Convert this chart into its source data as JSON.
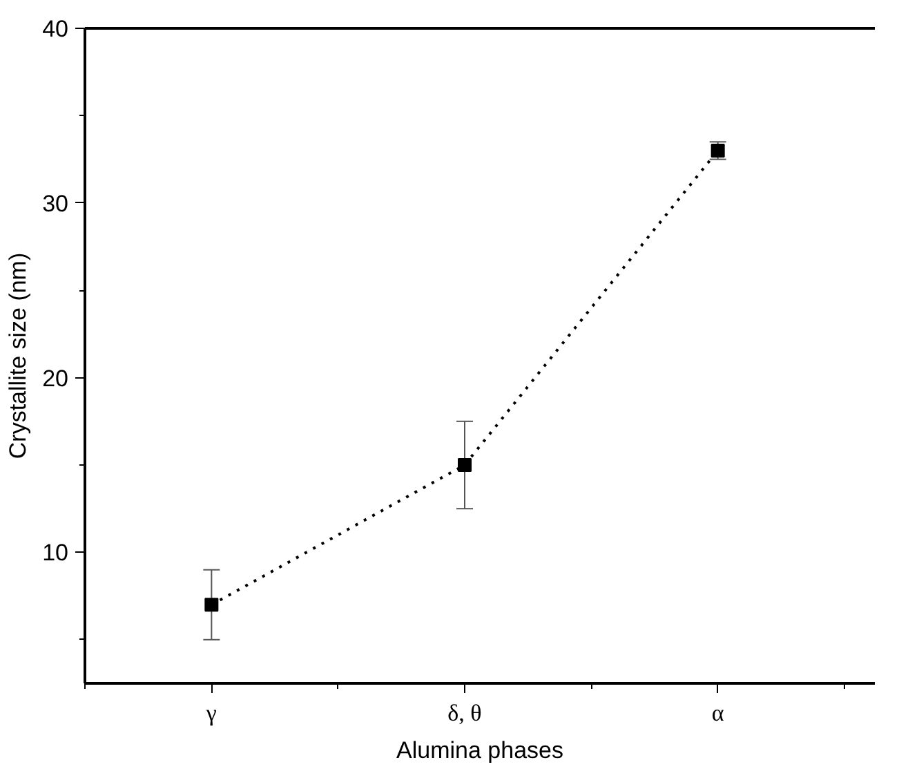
{
  "chart_data": {
    "type": "line",
    "xlabel": "Alumina phases",
    "ylabel": "Crystallite size (nm)",
    "categories": [
      "γ",
      "δ, θ",
      "α"
    ],
    "series": [
      {
        "color": "#000000",
        "values": [
          7,
          15,
          33
        ],
        "errors": [
          2,
          2.5,
          0.5
        ]
      }
    ],
    "ylim": [
      2.5,
      40
    ],
    "yticks": [
      10,
      20,
      30,
      40
    ],
    "marker": "square",
    "line_style": "dotted",
    "grid": false
  }
}
